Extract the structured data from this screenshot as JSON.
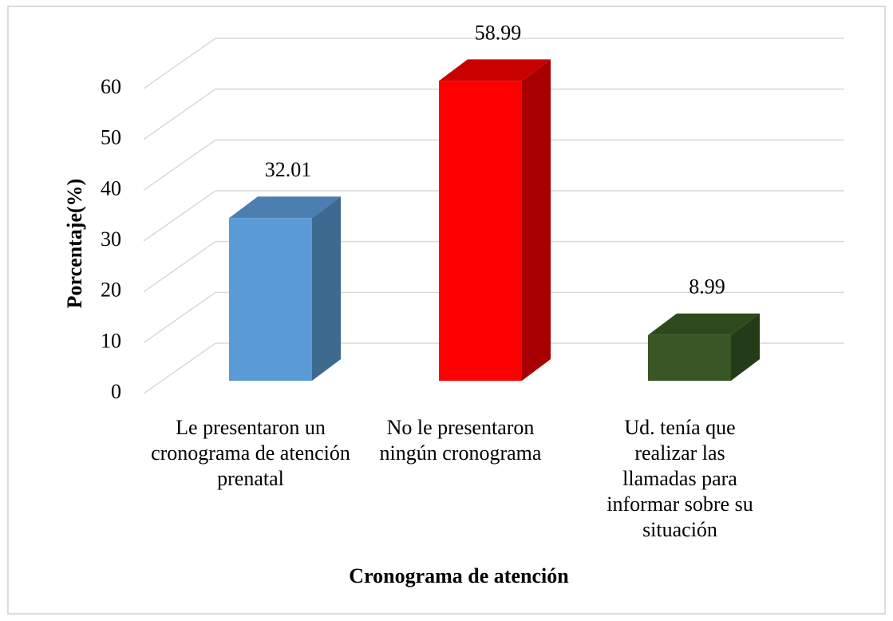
{
  "chart_data": {
    "type": "bar3d",
    "y_axis_label": "Porcentaje(%)",
    "x_axis_label": "Cronograma de atención",
    "categories": [
      "Le presentaron un cronograma de atención prenatal",
      "No le presentaron ningún cronograma",
      "Ud. tenía que realizar las llamadas para informar sobre su situación"
    ],
    "values": [
      32.01,
      58.99,
      8.99
    ],
    "colors": [
      "#5b9bd5",
      "#ff0000",
      "#375623"
    ],
    "side_colors": [
      "#3e6a90",
      "#a80000",
      "#243b17"
    ],
    "top_colors": [
      "#4a7fb0",
      "#c80000",
      "#2c4a1c"
    ],
    "ylim": [
      0,
      60
    ],
    "yticks": [
      0,
      10,
      20,
      30,
      40,
      50,
      60
    ],
    "grid": true
  }
}
